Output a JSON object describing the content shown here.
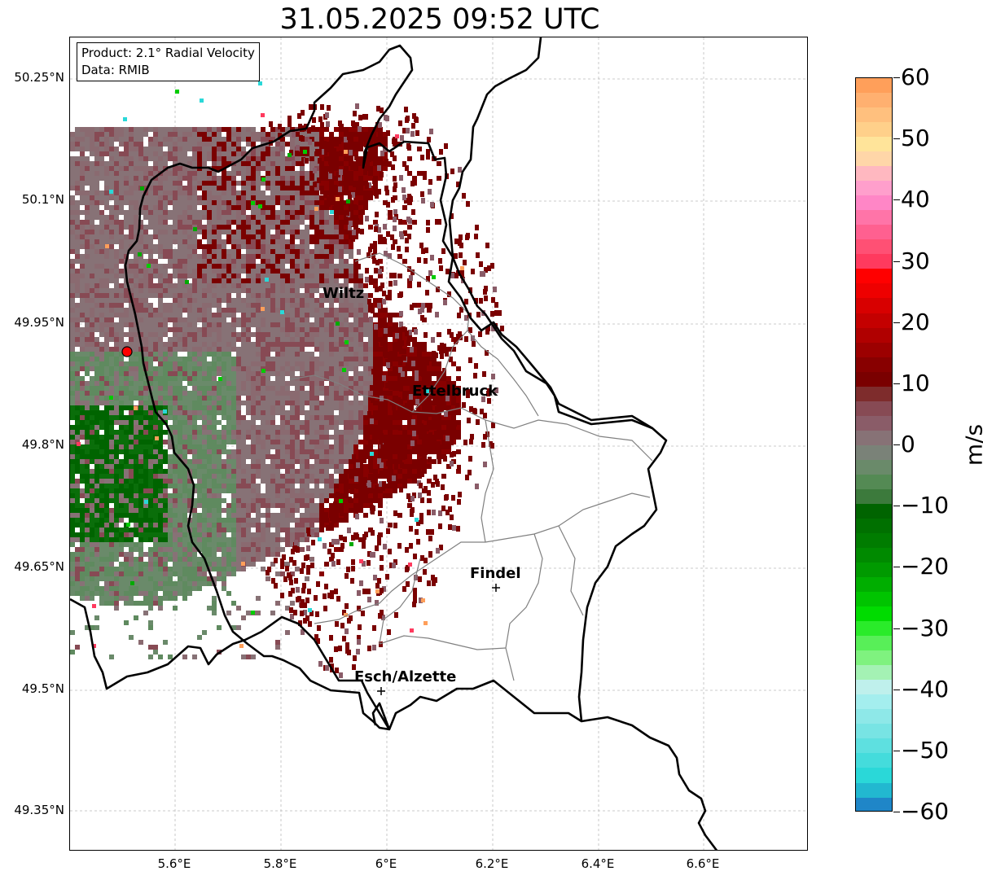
{
  "title": "31.05.2025 09:52 UTC",
  "info": {
    "line1": "Product: 2.1° Radial Velocity",
    "line2": "Data: RMIB"
  },
  "axes": {
    "lat_labels": [
      "50.25°N",
      "50.1°N",
      "49.95°N",
      "49.8°N",
      "49.65°N",
      "49.5°N",
      "49.35°N"
    ],
    "lon_labels": [
      "5.6°E",
      "5.8°E",
      "6°E",
      "6.2°E",
      "6.4°E",
      "6.6°E"
    ],
    "grid": true
  },
  "cities": [
    {
      "name": "Wiltz"
    },
    {
      "name": "Ettelbruck"
    },
    {
      "name": "Findel"
    },
    {
      "name": "Esch/Alzette"
    }
  ],
  "colorbar": {
    "unit": "m/s",
    "tick_labels": [
      "60",
      "50",
      "40",
      "30",
      "20",
      "10",
      "0",
      "−10",
      "−20",
      "−30",
      "−40",
      "−50",
      "−60"
    ],
    "colors_top_to_bottom": [
      "#ff9f5a",
      "#ffb070",
      "#ffc07e",
      "#ffd08a",
      "#ffe49a",
      "#ffd6a8",
      "#ffb8c0",
      "#ff9fcc",
      "#ff86c6",
      "#ff74a8",
      "#ff6090",
      "#ff5074",
      "#ff3a5e",
      "#ff0000",
      "#ee0000",
      "#d80000",
      "#c40000",
      "#b00000",
      "#9c0000",
      "#880000",
      "#7a0000",
      "#7e2c2c",
      "#874a54",
      "#8a5c68",
      "#877276",
      "#7a8278",
      "#6a8a6a",
      "#548a54",
      "#3c7a3c",
      "#006400",
      "#007000",
      "#007c00",
      "#008a00",
      "#009a00",
      "#00ae00",
      "#00c400",
      "#00dc00",
      "#2aeb2a",
      "#58ef58",
      "#7ff27f",
      "#a4f2b4",
      "#bff0ec",
      "#a4eeee",
      "#8ee8e8",
      "#78e4e4",
      "#5ee0e0",
      "#44dcdc",
      "#2ad8d8",
      "#22b8d0",
      "#1f86c8"
    ]
  },
  "radar_site_color": "#ff0000"
}
